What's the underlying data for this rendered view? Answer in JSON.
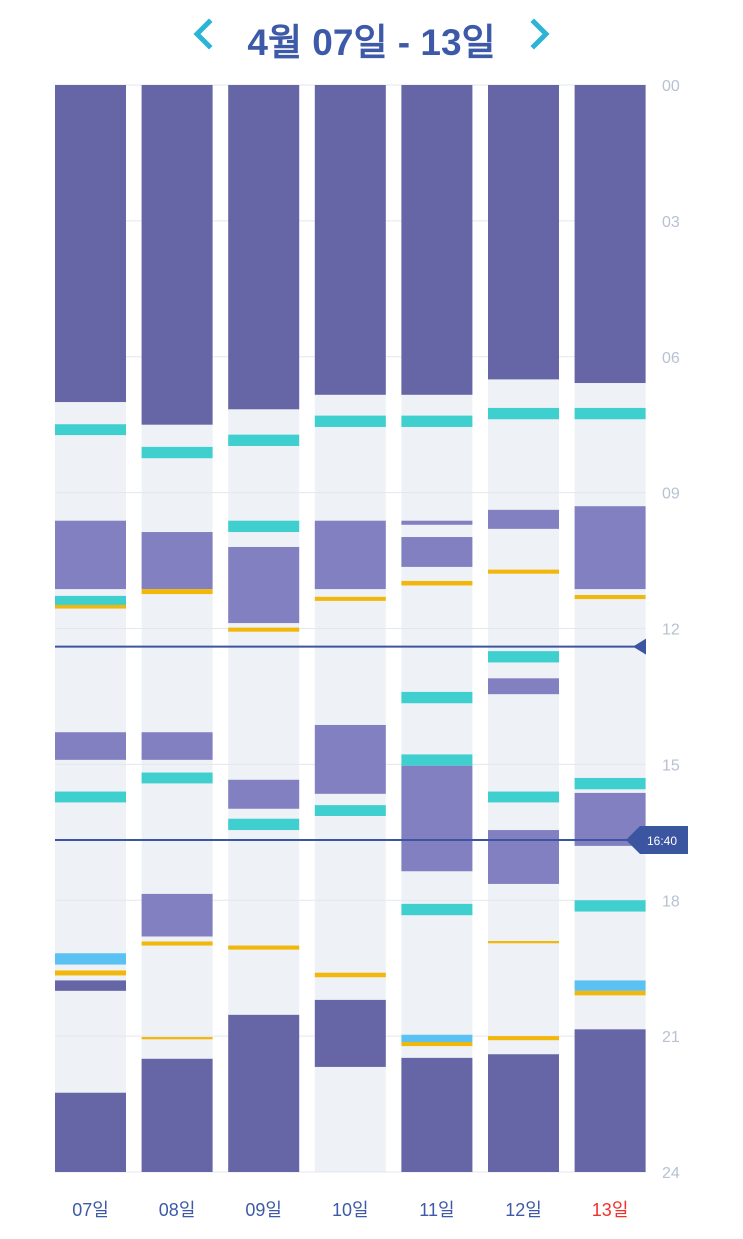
{
  "header": {
    "title": "4월 07일 - 13일",
    "prev_icon": "chevron-left-icon",
    "next_icon": "chevron-right-icon"
  },
  "colors": {
    "title": "#3d5aa8",
    "nav_arrow": "#2bb4d6",
    "column_bg": "#eef2f6",
    "deep": "#6665a6",
    "light": "#8280c1",
    "teal": "#3ecfce",
    "blue": "#5bc1f2",
    "yellow": "#f1b70a",
    "marker": "#3b55a0",
    "day_label": "#3d5aa8",
    "today_label": "#f0322e",
    "axis_label": "#b7c1d2"
  },
  "chart_data": {
    "type": "timeline",
    "title": "4월 07일 - 13일",
    "y_axis": {
      "range": [
        0,
        24
      ],
      "ticks": [
        "00",
        "03",
        "06",
        "09",
        "12",
        "15",
        "18",
        "21",
        "24"
      ],
      "unit": "hour",
      "position": "right"
    },
    "categories": [
      "07일",
      "08일",
      "09일",
      "10일",
      "11일",
      "12일",
      "13일"
    ],
    "highlight_category": "13일",
    "grid": true,
    "legend": "none",
    "reference_lines": [
      {
        "hour": 12.4,
        "label": ""
      },
      {
        "hour": 16.67,
        "label": "16:40"
      }
    ],
    "series": [
      {
        "day": "07일",
        "segments": [
          {
            "type": "deep",
            "start": 0,
            "end": 7.0
          },
          {
            "type": "teal",
            "start": 7.49,
            "end": 7.73
          },
          {
            "type": "light",
            "start": 9.62,
            "end": 11.13
          },
          {
            "type": "teal",
            "start": 11.28,
            "end": 11.48
          },
          {
            "type": "yellow",
            "start": 11.48,
            "end": 11.56
          },
          {
            "type": "light",
            "start": 14.29,
            "end": 14.9
          },
          {
            "type": "teal",
            "start": 15.6,
            "end": 15.84
          },
          {
            "type": "blue",
            "start": 19.17,
            "end": 19.42
          },
          {
            "type": "yellow",
            "start": 19.55,
            "end": 19.66
          },
          {
            "type": "deep",
            "start": 19.77,
            "end": 20.0
          },
          {
            "type": "deep",
            "start": 22.25,
            "end": 24
          }
        ]
      },
      {
        "day": "08일",
        "segments": [
          {
            "type": "deep",
            "start": 0,
            "end": 7.5
          },
          {
            "type": "teal",
            "start": 7.99,
            "end": 8.24
          },
          {
            "type": "light",
            "start": 9.87,
            "end": 11.13
          },
          {
            "type": "yellow",
            "start": 11.13,
            "end": 11.24
          },
          {
            "type": "light",
            "start": 14.29,
            "end": 14.9
          },
          {
            "type": "teal",
            "start": 15.18,
            "end": 15.42
          },
          {
            "type": "light",
            "start": 17.86,
            "end": 18.8
          },
          {
            "type": "yellow",
            "start": 18.91,
            "end": 19.0
          },
          {
            "type": "yellow",
            "start": 21.02,
            "end": 21.07
          },
          {
            "type": "deep",
            "start": 21.5,
            "end": 24
          }
        ]
      },
      {
        "day": "09일",
        "segments": [
          {
            "type": "deep",
            "start": 0,
            "end": 7.16
          },
          {
            "type": "teal",
            "start": 7.72,
            "end": 7.97
          },
          {
            "type": "teal",
            "start": 9.62,
            "end": 9.87
          },
          {
            "type": "light",
            "start": 10.2,
            "end": 11.88
          },
          {
            "type": "yellow",
            "start": 11.98,
            "end": 12.07
          },
          {
            "type": "light",
            "start": 15.34,
            "end": 15.98
          },
          {
            "type": "teal",
            "start": 16.2,
            "end": 16.45
          },
          {
            "type": "yellow",
            "start": 19.0,
            "end": 19.09
          },
          {
            "type": "deep",
            "start": 20.53,
            "end": 24
          }
        ]
      },
      {
        "day": "10일",
        "segments": [
          {
            "type": "deep",
            "start": 0,
            "end": 6.84
          },
          {
            "type": "teal",
            "start": 7.3,
            "end": 7.55
          },
          {
            "type": "light",
            "start": 9.62,
            "end": 11.13
          },
          {
            "type": "yellow",
            "start": 11.3,
            "end": 11.39
          },
          {
            "type": "light",
            "start": 14.13,
            "end": 15.65
          },
          {
            "type": "teal",
            "start": 15.9,
            "end": 16.14
          },
          {
            "type": "yellow",
            "start": 19.6,
            "end": 19.7
          },
          {
            "type": "deep",
            "start": 20.2,
            "end": 21.68
          }
        ]
      },
      {
        "day": "11일",
        "segments": [
          {
            "type": "deep",
            "start": 0,
            "end": 6.84
          },
          {
            "type": "teal",
            "start": 7.3,
            "end": 7.55
          },
          {
            "type": "light",
            "start": 9.62,
            "end": 9.71
          },
          {
            "type": "light",
            "start": 9.98,
            "end": 10.64
          },
          {
            "type": "yellow",
            "start": 10.95,
            "end": 11.05
          },
          {
            "type": "teal",
            "start": 13.4,
            "end": 13.65
          },
          {
            "type": "teal",
            "start": 14.78,
            "end": 15.03
          },
          {
            "type": "light",
            "start": 15.03,
            "end": 17.36
          },
          {
            "type": "teal",
            "start": 18.08,
            "end": 18.33
          },
          {
            "type": "blue",
            "start": 20.97,
            "end": 21.13
          },
          {
            "type": "yellow",
            "start": 21.13,
            "end": 21.22
          },
          {
            "type": "deep",
            "start": 21.48,
            "end": 24
          }
        ]
      },
      {
        "day": "12일",
        "segments": [
          {
            "type": "deep",
            "start": 0,
            "end": 6.5
          },
          {
            "type": "teal",
            "start": 7.13,
            "end": 7.38
          },
          {
            "type": "light",
            "start": 9.38,
            "end": 9.8
          },
          {
            "type": "yellow",
            "start": 10.7,
            "end": 10.79
          },
          {
            "type": "teal",
            "start": 12.5,
            "end": 12.75
          },
          {
            "type": "light",
            "start": 13.1,
            "end": 13.45
          },
          {
            "type": "teal",
            "start": 15.6,
            "end": 15.84
          },
          {
            "type": "light",
            "start": 16.45,
            "end": 17.64
          },
          {
            "type": "yellow",
            "start": 18.9,
            "end": 18.95
          },
          {
            "type": "yellow",
            "start": 21.0,
            "end": 21.09
          },
          {
            "type": "deep",
            "start": 21.4,
            "end": 24
          }
        ]
      },
      {
        "day": "13일",
        "segments": [
          {
            "type": "deep",
            "start": 0,
            "end": 6.58
          },
          {
            "type": "teal",
            "start": 7.13,
            "end": 7.38
          },
          {
            "type": "light",
            "start": 9.3,
            "end": 11.13
          },
          {
            "type": "yellow",
            "start": 11.26,
            "end": 11.35
          },
          {
            "type": "teal",
            "start": 15.3,
            "end": 15.55
          },
          {
            "type": "light",
            "start": 15.63,
            "end": 16.8
          },
          {
            "type": "teal",
            "start": 18.0,
            "end": 18.25
          },
          {
            "type": "blue",
            "start": 19.77,
            "end": 20.0
          },
          {
            "type": "yellow",
            "start": 20.0,
            "end": 20.1
          },
          {
            "type": "deep",
            "start": 20.85,
            "end": 24
          }
        ]
      }
    ]
  }
}
